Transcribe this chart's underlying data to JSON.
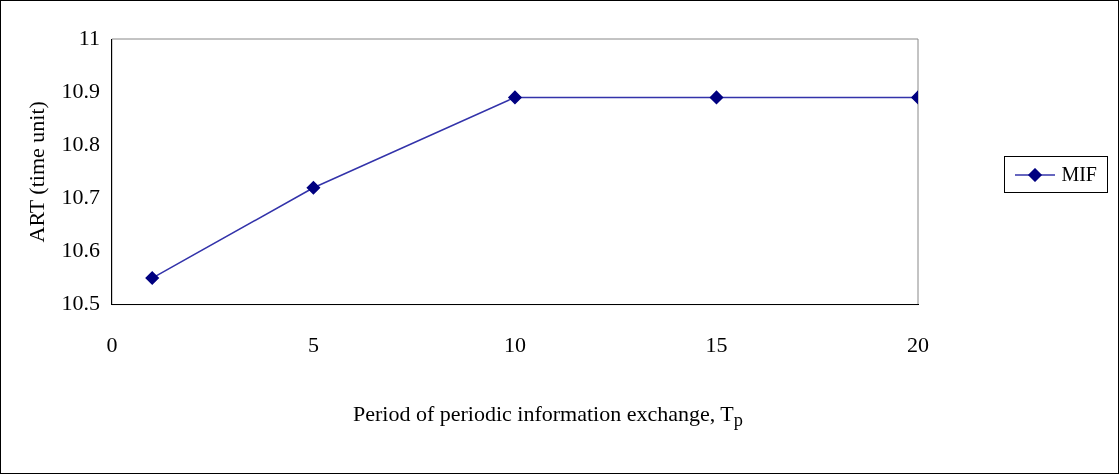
{
  "chart_data": {
    "type": "line",
    "xlabel": "Period of periodic information exchange, T$_{p}$",
    "ylabel": "ART (time unit)",
    "x": [
      1,
      5,
      10,
      15,
      20
    ],
    "series": [
      {
        "name": "MIF",
        "color": "#000080",
        "values": [
          10.55,
          10.72,
          10.89,
          10.89,
          10.89
        ]
      }
    ],
    "xlim": [
      0,
      20
    ],
    "xticks": [
      0,
      5,
      10,
      15,
      20
    ],
    "ylim": [
      10.5,
      11
    ],
    "yticks": [
      10.5,
      10.6,
      10.7,
      10.8,
      10.9,
      11
    ],
    "grid": false,
    "legend": "right",
    "marker": "diamond",
    "line_style": "solid"
  }
}
